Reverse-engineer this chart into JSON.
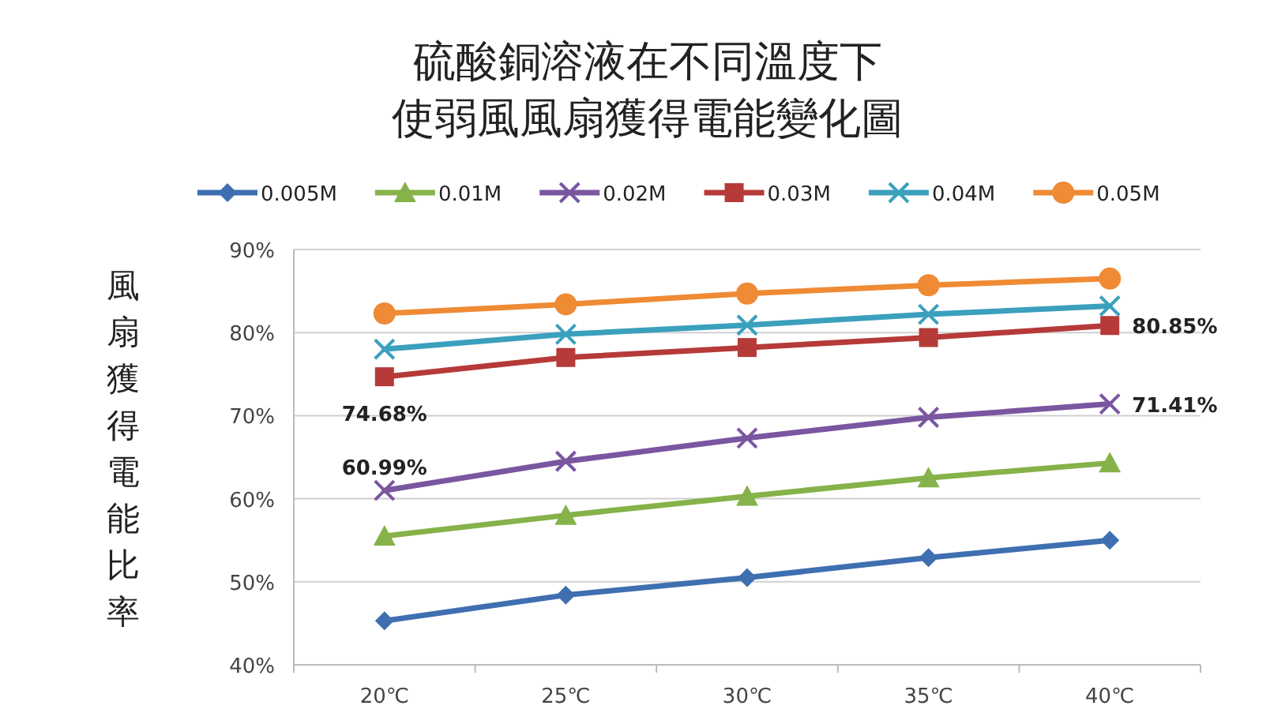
{
  "chart_data": {
    "type": "line",
    "title": "硫酸銅溶液在不同溫度下",
    "subtitle": "使弱風風扇獲得電能變化圖",
    "ylabel": "風扇獲得電能比率",
    "categories": [
      "20℃",
      "25℃",
      "30℃",
      "35℃",
      "40℃"
    ],
    "ylim": [
      40,
      90
    ],
    "yticks": [
      {
        "value": 40,
        "label": "40%"
      },
      {
        "value": 50,
        "label": "50%"
      },
      {
        "value": 60,
        "label": "60%"
      },
      {
        "value": 70,
        "label": "70%"
      },
      {
        "value": 80,
        "label": "80%"
      },
      {
        "value": 90,
        "label": "90%"
      }
    ],
    "grid": "y",
    "legend": "top",
    "series": [
      {
        "name": "0.005M",
        "color": "#3f6fb0",
        "marker": "diamond",
        "values": [
          45.3,
          48.4,
          50.5,
          52.9,
          55.0
        ]
      },
      {
        "name": "0.01M",
        "color": "#86b24a",
        "marker": "triangle",
        "values": [
          55.5,
          58.0,
          60.3,
          62.5,
          64.3
        ]
      },
      {
        "name": "0.02M",
        "color": "#7a56a0",
        "marker": "cross",
        "values": [
          60.99,
          64.5,
          67.3,
          69.8,
          71.41
        ],
        "value_labels": [
          "60.99%",
          null,
          null,
          null,
          "71.41%"
        ]
      },
      {
        "name": "0.03M",
        "color": "#b53a38",
        "marker": "square",
        "values": [
          74.68,
          77.0,
          78.2,
          79.4,
          80.85
        ],
        "value_labels": [
          "74.68%",
          null,
          null,
          null,
          "80.85%"
        ]
      },
      {
        "name": "0.04M",
        "color": "#3aa0bd",
        "marker": "cross",
        "values": [
          78.0,
          79.8,
          80.9,
          82.2,
          83.2
        ]
      },
      {
        "name": "0.05M",
        "color": "#ef8a35",
        "marker": "circle",
        "values": [
          82.3,
          83.4,
          84.7,
          85.7,
          86.5
        ]
      }
    ]
  }
}
